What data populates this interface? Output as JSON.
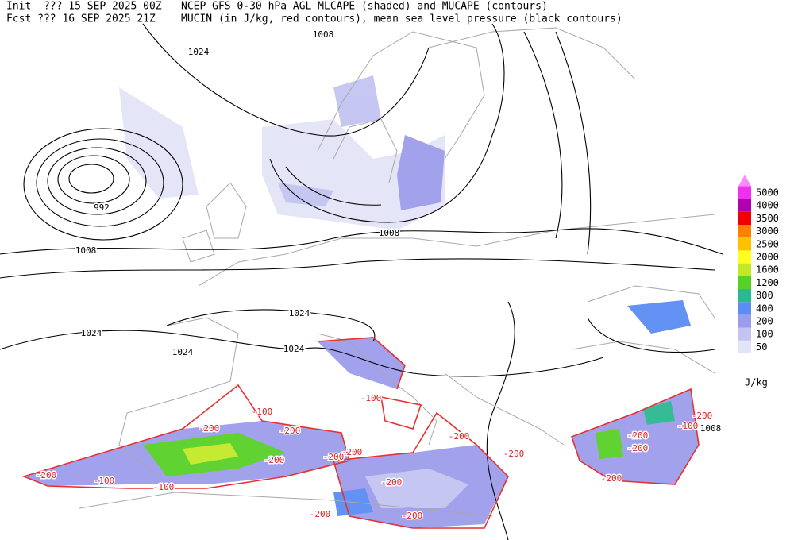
{
  "header": {
    "init": "Init  ??? 15 SEP 2025 00Z",
    "title": "NCEP GFS 0-30 hPa AGL MLCAPE (shaded) and MUCAPE (contours)",
    "fcst": "Fcst ??? 16 SEP 2025 21Z",
    "subtitle": "MUCIN (in J/kg, red contours), mean sea level pressure (black contours)"
  },
  "colorbar": {
    "levels": [
      50,
      100,
      200,
      400,
      800,
      1200,
      1600,
      2000,
      2500,
      3000,
      3500,
      4000,
      5000
    ],
    "colors": [
      "#e4e4f8",
      "#c4c4f2",
      "#9c9cec",
      "#5c8cf4",
      "#2cb890",
      "#58d028",
      "#c4e828",
      "#ffff20",
      "#ffc000",
      "#ff8000",
      "#f00000",
      "#b000b0",
      "#f030f0"
    ],
    "extend_color": "#ff88ff",
    "unit": "J/kg"
  },
  "isobar_labels": [
    1024,
    1008,
    992,
    1008,
    1008,
    1024,
    1024,
    1024,
    1024,
    1008
  ],
  "mucin_labels": [
    -100,
    -100,
    -200,
    -200,
    -200,
    -100,
    -100,
    -200,
    -200,
    -200,
    -200,
    -200,
    -200,
    -200,
    -200,
    -200,
    -200,
    -200,
    -100,
    -200
  ]
}
